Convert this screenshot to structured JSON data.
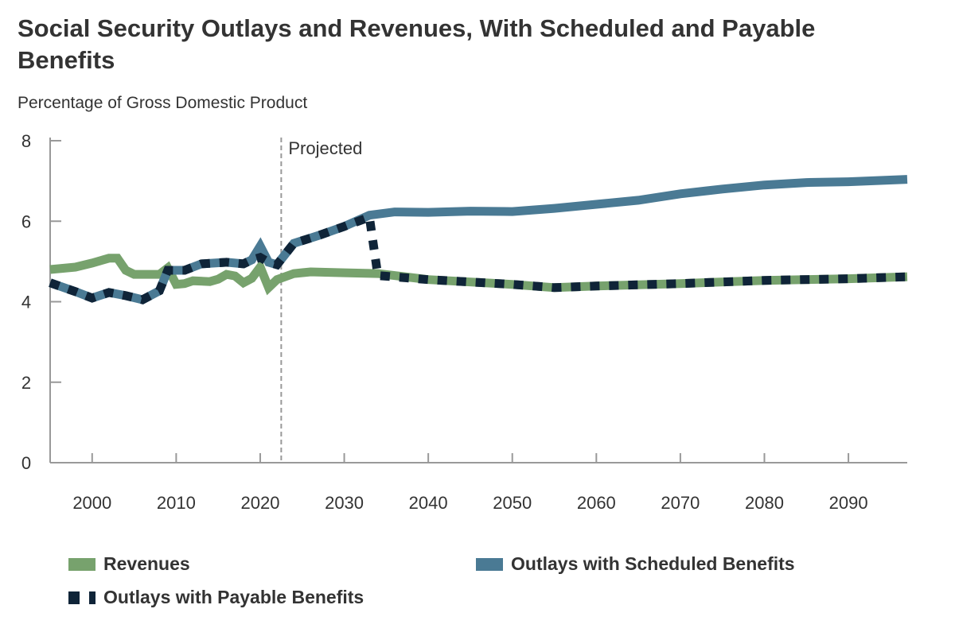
{
  "chart_data": {
    "type": "line",
    "title": "Social Security Outlays and Revenues, With Scheduled and Payable Benefits",
    "subtitle": "Percentage of Gross Domestic Product",
    "xlabel": "",
    "ylabel": "",
    "xlim": [
      1995,
      2097
    ],
    "ylim": [
      0,
      8
    ],
    "x_ticks": [
      2000,
      2010,
      2020,
      2030,
      2040,
      2050,
      2060,
      2070,
      2080,
      2090
    ],
    "y_ticks": [
      0,
      2,
      4,
      6,
      8
    ],
    "grid": false,
    "annotation": {
      "label": "Projected",
      "x": 2022.5
    },
    "legend_position": "bottom",
    "series": [
      {
        "name": "Revenues",
        "color": "#77a26d",
        "style": "solid",
        "points": [
          [
            1995,
            4.8
          ],
          [
            1998,
            4.86
          ],
          [
            2000,
            4.96
          ],
          [
            2002,
            5.08
          ],
          [
            2003,
            5.08
          ],
          [
            2004,
            4.78
          ],
          [
            2005,
            4.68
          ],
          [
            2008,
            4.68
          ],
          [
            2009,
            4.84
          ],
          [
            2010,
            4.43
          ],
          [
            2011,
            4.45
          ],
          [
            2012,
            4.52
          ],
          [
            2014,
            4.5
          ],
          [
            2015,
            4.56
          ],
          [
            2016,
            4.68
          ],
          [
            2017,
            4.64
          ],
          [
            2018,
            4.47
          ],
          [
            2019,
            4.58
          ],
          [
            2020,
            4.86
          ],
          [
            2021,
            4.35
          ],
          [
            2022,
            4.55
          ],
          [
            2024,
            4.7
          ],
          [
            2026,
            4.74
          ],
          [
            2030,
            4.72
          ],
          [
            2034,
            4.7
          ],
          [
            2040,
            4.55
          ],
          [
            2050,
            4.43
          ],
          [
            2055,
            4.35
          ],
          [
            2060,
            4.39
          ],
          [
            2070,
            4.45
          ],
          [
            2080,
            4.53
          ],
          [
            2090,
            4.57
          ],
          [
            2097,
            4.62
          ]
        ]
      },
      {
        "name": "Outlays with Scheduled Benefits",
        "color": "#4a7a94",
        "style": "solid",
        "points": [
          [
            1995,
            4.47
          ],
          [
            1998,
            4.25
          ],
          [
            2000,
            4.09
          ],
          [
            2002,
            4.23
          ],
          [
            2004,
            4.15
          ],
          [
            2006,
            4.05
          ],
          [
            2008,
            4.27
          ],
          [
            2009,
            4.78
          ],
          [
            2011,
            4.78
          ],
          [
            2013,
            4.94
          ],
          [
            2016,
            4.98
          ],
          [
            2018,
            4.94
          ],
          [
            2019,
            5.04
          ],
          [
            2020,
            5.38
          ],
          [
            2021,
            4.98
          ],
          [
            2022,
            4.92
          ],
          [
            2024,
            5.45
          ],
          [
            2027,
            5.65
          ],
          [
            2030,
            5.87
          ],
          [
            2033,
            6.15
          ],
          [
            2036,
            6.23
          ],
          [
            2040,
            6.22
          ],
          [
            2045,
            6.25
          ],
          [
            2050,
            6.24
          ],
          [
            2055,
            6.32
          ],
          [
            2060,
            6.42
          ],
          [
            2065,
            6.52
          ],
          [
            2070,
            6.68
          ],
          [
            2075,
            6.8
          ],
          [
            2080,
            6.9
          ],
          [
            2085,
            6.96
          ],
          [
            2090,
            6.98
          ],
          [
            2097,
            7.04
          ]
        ]
      },
      {
        "name": "Outlays with Payable Benefits",
        "color": "#0f2438",
        "style": "dotted",
        "points": [
          [
            1995,
            4.47
          ],
          [
            1998,
            4.25
          ],
          [
            2000,
            4.09
          ],
          [
            2002,
            4.23
          ],
          [
            2004,
            4.15
          ],
          [
            2006,
            4.05
          ],
          [
            2008,
            4.27
          ],
          [
            2009,
            4.78
          ],
          [
            2011,
            4.78
          ],
          [
            2013,
            4.94
          ],
          [
            2016,
            4.98
          ],
          [
            2018,
            4.94
          ],
          [
            2019,
            5.04
          ],
          [
            2020,
            5.1
          ],
          [
            2021,
            4.98
          ],
          [
            2022,
            4.92
          ],
          [
            2024,
            5.45
          ],
          [
            2027,
            5.65
          ],
          [
            2030,
            5.87
          ],
          [
            2033,
            6.1
          ],
          [
            2034,
            4.65
          ],
          [
            2040,
            4.55
          ],
          [
            2050,
            4.43
          ],
          [
            2055,
            4.35
          ],
          [
            2060,
            4.39
          ],
          [
            2070,
            4.45
          ],
          [
            2080,
            4.53
          ],
          [
            2090,
            4.57
          ],
          [
            2097,
            4.62
          ]
        ]
      }
    ]
  }
}
